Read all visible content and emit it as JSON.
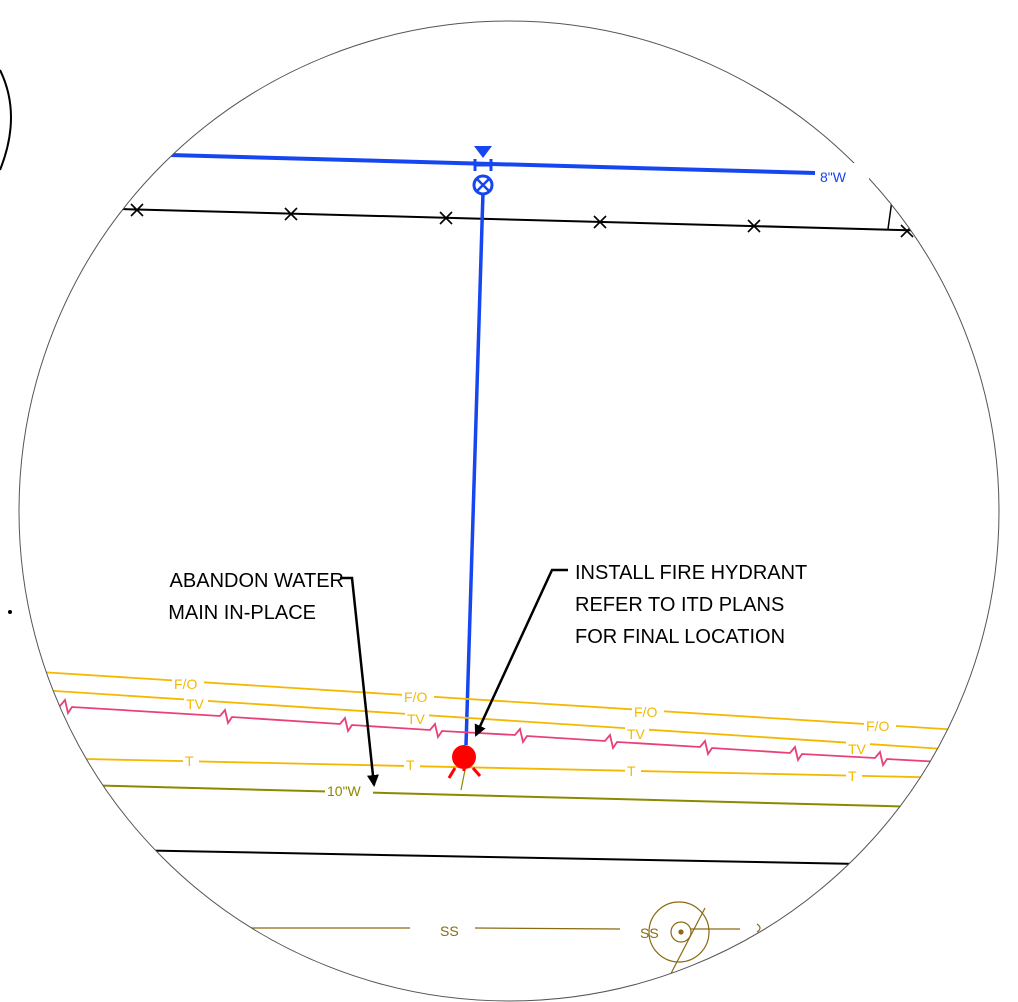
{
  "notes": {
    "abandon_line1": "ABANDON WATER",
    "abandon_line2": "MAIN IN-PLACE",
    "hydrant_line1": "INSTALL FIRE HYDRANT",
    "hydrant_line2": "REFER TO ITD PLANS",
    "hydrant_line3": "FOR FINAL LOCATION"
  },
  "utility_labels": {
    "water_main_new": "8\"W",
    "water_main_old": "10\"W",
    "fiber_optic": "F/O",
    "cable_tv": "TV",
    "telephone": "T",
    "sanitary_sewer": "SS"
  },
  "colors": {
    "water_new": "#1646f0",
    "fiber_optic": "#f5b800",
    "cable_tv": "#e8407a",
    "telephone": "#f5b800",
    "water_old": "#8a8a00",
    "sewer": "#8a6a10",
    "hydrant": "#ff0000",
    "linework": "#000000"
  }
}
